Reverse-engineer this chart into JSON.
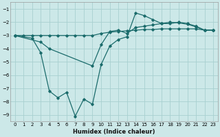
{
  "xlabel": "Humidex (Indice chaleur)",
  "bg_color": "#cce8e8",
  "grid_color": "#a8d0d0",
  "line_color": "#1a6b6b",
  "xlim": [
    -0.5,
    23.5
  ],
  "ylim": [
    -9.5,
    -0.5
  ],
  "yticks": [
    -9,
    -8,
    -7,
    -6,
    -5,
    -4,
    -3,
    -2,
    -1
  ],
  "xticks": [
    0,
    1,
    2,
    3,
    4,
    5,
    6,
    7,
    8,
    9,
    10,
    11,
    12,
    13,
    14,
    15,
    16,
    17,
    18,
    19,
    20,
    21,
    22,
    23
  ],
  "line1_x": [
    0,
    1,
    2,
    3,
    4,
    5,
    6,
    7,
    8,
    9,
    10,
    11,
    12,
    13,
    14,
    15,
    16,
    17,
    18,
    19,
    20,
    21,
    22,
    23
  ],
  "line1_y": [
    -3.0,
    -3.0,
    -3.0,
    -3.0,
    -3.0,
    -3.0,
    -3.0,
    -3.0,
    -3.0,
    -3.0,
    -2.85,
    -2.75,
    -2.7,
    -2.65,
    -2.6,
    -2.55,
    -2.55,
    -2.5,
    -2.5,
    -2.5,
    -2.5,
    -2.5,
    -2.6,
    -2.6
  ],
  "line2_x": [
    0,
    2,
    3,
    4,
    5,
    6,
    7,
    8,
    9,
    10,
    11,
    12,
    13,
    14,
    15,
    16,
    17,
    18,
    19,
    20,
    21,
    22,
    23
  ],
  "line2_y": [
    -3.0,
    -3.2,
    -4.3,
    -7.2,
    -7.7,
    -7.3,
    -9.1,
    -7.8,
    -8.2,
    -5.2,
    -3.8,
    -3.3,
    -3.1,
    -1.3,
    -1.5,
    -1.8,
    -2.1,
    -2.1,
    -2.0,
    -2.1,
    -2.3,
    -2.6,
    -2.6
  ],
  "line3_x": [
    0,
    3,
    4,
    9,
    10,
    11,
    12,
    13,
    14,
    15,
    16,
    17,
    18,
    19,
    20,
    21,
    22,
    23
  ],
  "line3_y": [
    -3.0,
    -3.5,
    -4.0,
    -5.3,
    -3.7,
    -2.7,
    -2.6,
    -2.85,
    -2.4,
    -2.3,
    -2.2,
    -2.1,
    -2.0,
    -2.05,
    -2.15,
    -2.35,
    -2.6,
    -2.6
  ]
}
